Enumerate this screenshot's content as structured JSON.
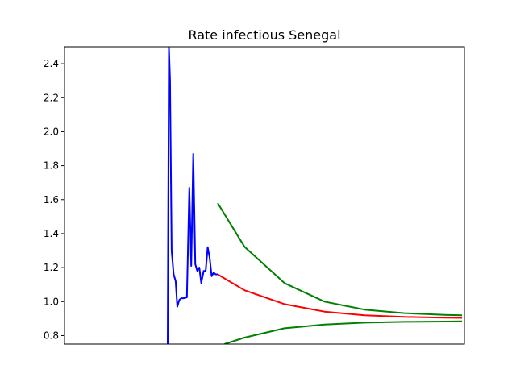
{
  "chart_data": {
    "type": "line",
    "title": "Rate infectious Senegal",
    "xlabel": "",
    "ylabel": "",
    "xlim": [
      0,
      100
    ],
    "ylim": [
      0.75,
      2.5
    ],
    "yticks": [
      0.8,
      1.0,
      1.2,
      1.4,
      1.6,
      1.8,
      2.0,
      2.2,
      2.4
    ],
    "ytick_labels": [
      "0.8",
      "1.0",
      "1.2",
      "1.4",
      "1.6",
      "1.8",
      "2.0",
      "2.2",
      "2.4"
    ],
    "xticks_visible": false,
    "grid": false,
    "legend": "none",
    "series": [
      {
        "color": "#0000ff",
        "x": [
          25.8,
          26.1,
          26.4,
          26.8,
          27.3,
          27.8,
          28.2,
          28.7,
          29.2,
          29.9,
          30.6,
          31.2,
          31.7,
          32.2,
          32.7,
          33.2,
          33.7,
          34.2,
          34.8,
          35.3,
          35.8,
          36.3,
          36.8,
          37.3,
          37.8,
          38.3
        ],
        "y": [
          0.75,
          2.5,
          2.3,
          1.3,
          1.16,
          1.12,
          0.97,
          1.01,
          1.02,
          1.02,
          1.025,
          1.67,
          1.21,
          1.87,
          1.22,
          1.18,
          1.2,
          1.11,
          1.18,
          1.18,
          1.32,
          1.26,
          1.15,
          1.17,
          1.16,
          1.16
        ]
      },
      {
        "color": "#ff0000",
        "x": [
          38.3,
          45,
          55,
          65,
          75,
          85,
          95,
          99.4
        ],
        "y": [
          1.16,
          1.067,
          0.985,
          0.941,
          0.92,
          0.91,
          0.905,
          0.904
        ]
      },
      {
        "color": "#008000",
        "x": [
          38.3,
          45,
          55,
          65,
          75,
          85,
          95,
          99.4
        ],
        "y": [
          1.58,
          1.323,
          1.109,
          1.0,
          0.953,
          0.932,
          0.922,
          0.92
        ]
      },
      {
        "color": "#008000",
        "x": [
          40,
          45,
          55,
          65,
          75,
          85,
          95,
          99.4
        ],
        "y": [
          0.75,
          0.788,
          0.843,
          0.865,
          0.876,
          0.881,
          0.883,
          0.884
        ]
      }
    ]
  }
}
